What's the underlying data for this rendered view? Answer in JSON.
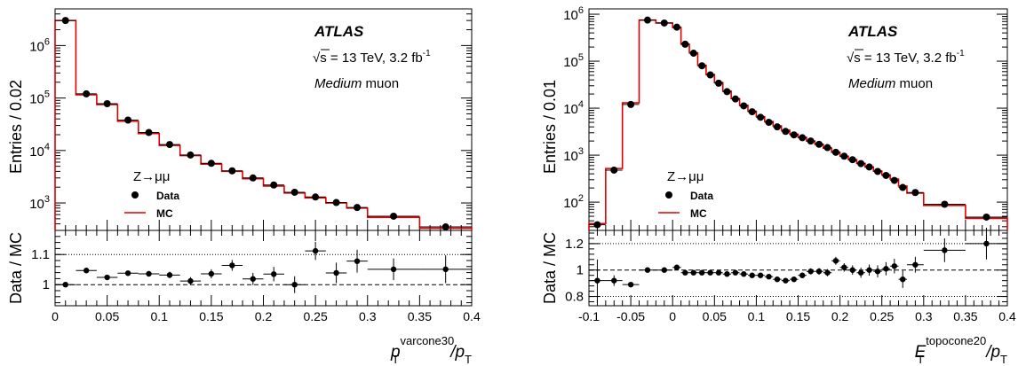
{
  "chart_data": [
    {
      "type": "histogram",
      "ylabel": "Entries / 0.02",
      "xlabel_main": "p",
      "xlabel_sup": "varcone30",
      "xlabel_sub": "T",
      "xlabel_div": "/p",
      "xlabel_div_sub": "T",
      "ratio_ylabel": "Data / MC",
      "atlas_label": "ATLAS",
      "energy_text": "√s = 13 TeV, 3.2 fb",
      "energy_sup": "-1",
      "muon_text": "Medium",
      "muon_suffix": " muon",
      "process_label": "Z→μμ",
      "legend_data": "Data",
      "legend_mc": "MC",
      "xlim": [
        0,
        0.4
      ],
      "ylim_log": [
        300,
        5000000
      ],
      "ratio_ylim": [
        0.93,
        1.18
      ],
      "x_ticks": [
        "0",
        "0.05",
        "0.1",
        "0.15",
        "0.2",
        "0.25",
        "0.3",
        "0.35",
        "0.4"
      ],
      "y_ticks": [
        {
          "base": "10",
          "exp": "3",
          "value": 1000
        },
        {
          "base": "10",
          "exp": "4",
          "value": 10000
        },
        {
          "base": "10",
          "exp": "5",
          "value": 100000
        },
        {
          "base": "10",
          "exp": "6",
          "value": 1000000
        }
      ],
      "ratio_ticks": [
        "1",
        "1.1"
      ],
      "ratio_dotted": [
        1.1
      ],
      "mc_bins": [
        0,
        0.02,
        0.04,
        0.06,
        0.08,
        0.1,
        0.12,
        0.14,
        0.16,
        0.18,
        0.2,
        0.22,
        0.24,
        0.26,
        0.28,
        0.3,
        0.35,
        0.4
      ],
      "mc_values": [
        3000000,
        115000,
        75000,
        36000,
        21000,
        12500,
        8000,
        5500,
        4000,
        2900,
        2100,
        1550,
        1250,
        1000,
        800,
        530,
        330
      ],
      "data_x": [
        0.01,
        0.03,
        0.05,
        0.07,
        0.09,
        0.11,
        0.13,
        0.15,
        0.17,
        0.19,
        0.21,
        0.23,
        0.25,
        0.27,
        0.29,
        0.325,
        0.375
      ],
      "data_y": [
        3000000,
        120000,
        78000,
        38000,
        22000,
        13000,
        8200,
        5700,
        4100,
        3000,
        2200,
        1600,
        1300,
        1020,
        820,
        560,
        350
      ],
      "ratio_x": [
        0.01,
        0.03,
        0.05,
        0.07,
        0.09,
        0.11,
        0.13,
        0.15,
        0.17,
        0.19,
        0.21,
        0.23,
        0.25,
        0.27,
        0.29,
        0.325,
        0.375
      ],
      "ratio_y": [
        1.0,
        1.047,
        1.024,
        1.038,
        1.036,
        1.032,
        1.012,
        1.036,
        1.064,
        1.019,
        1.035,
        1.0,
        1.112,
        1.039,
        1.078,
        1.051,
        1.051
      ],
      "ratio_err": [
        0.003,
        0.006,
        0.007,
        0.008,
        0.009,
        0.011,
        0.013,
        0.015,
        0.018,
        0.02,
        0.024,
        0.028,
        0.03,
        0.034,
        0.038,
        0.036,
        0.046
      ]
    },
    {
      "type": "histogram",
      "ylabel": "Entries / 0.01",
      "xlabel_main": "E",
      "xlabel_sup": "topocone20",
      "xlabel_sub": "T",
      "xlabel_div": "/p",
      "xlabel_div_sub": "T",
      "ratio_ylabel": "Data / MC",
      "atlas_label": "ATLAS",
      "energy_text": "√s = 13 TeV, 3.2 fb",
      "energy_sup": "-1",
      "muon_text": "Medium",
      "muon_suffix": " muon",
      "process_label": "Z→μμ",
      "legend_data": "Data",
      "legend_mc": "MC",
      "xlim": [
        -0.1,
        0.4
      ],
      "ylim_log": [
        25,
        1300000
      ],
      "ratio_ylim": [
        0.73,
        1.3
      ],
      "x_ticks": [
        "-0.1",
        "-0.05",
        "0",
        "0.05",
        "0.1",
        "0.15",
        "0.2",
        "0.25",
        "0.3",
        "0.35",
        "0.4"
      ],
      "y_ticks": [
        {
          "base": "10",
          "exp": "2",
          "value": 100
        },
        {
          "base": "10",
          "exp": "3",
          "value": 1000
        },
        {
          "base": "10",
          "exp": "4",
          "value": 10000
        },
        {
          "base": "10",
          "exp": "5",
          "value": 100000
        },
        {
          "base": "10",
          "exp": "6",
          "value": 1000000
        }
      ],
      "ratio_ticks": [
        "0.8",
        "1",
        "1.2"
      ],
      "ratio_dotted": [
        0.8,
        1.2
      ],
      "mc_bins": [
        -0.1,
        -0.08,
        -0.06,
        -0.04,
        -0.02,
        0,
        0.01,
        0.02,
        0.03,
        0.04,
        0.05,
        0.06,
        0.07,
        0.08,
        0.09,
        0.1,
        0.11,
        0.12,
        0.13,
        0.14,
        0.15,
        0.16,
        0.17,
        0.18,
        0.19,
        0.2,
        0.21,
        0.22,
        0.23,
        0.24,
        0.25,
        0.26,
        0.27,
        0.28,
        0.3,
        0.35,
        0.4
      ],
      "mc_values": [
        35,
        520,
        13000,
        750000,
        650000,
        520000,
        230000,
        150000,
        82000,
        52000,
        35000,
        23000,
        16000,
        11500,
        8600,
        6600,
        5200,
        4200,
        3400,
        2800,
        2400,
        2000,
        1700,
        1400,
        1150,
        950,
        800,
        670,
        560,
        460,
        380,
        310,
        220,
        155,
        85,
        45
      ],
      "data_x": [
        -0.09,
        -0.07,
        -0.05,
        -0.03,
        -0.01,
        0.005,
        0.015,
        0.025,
        0.035,
        0.045,
        0.055,
        0.065,
        0.075,
        0.085,
        0.095,
        0.105,
        0.115,
        0.125,
        0.135,
        0.145,
        0.155,
        0.165,
        0.175,
        0.185,
        0.195,
        0.205,
        0.215,
        0.225,
        0.235,
        0.245,
        0.255,
        0.265,
        0.275,
        0.29,
        0.325,
        0.375
      ],
      "data_y": [
        33,
        480,
        12000,
        750000,
        650000,
        530000,
        230000,
        148000,
        80000,
        51000,
        34000,
        22500,
        15700,
        11200,
        8400,
        6400,
        5000,
        4000,
        3200,
        2700,
        2350,
        2000,
        1700,
        1450,
        1150,
        950,
        800,
        660,
        560,
        450,
        370,
        290,
        205,
        160,
        90,
        48
      ],
      "ratio_x": [
        -0.09,
        -0.07,
        -0.05,
        -0.03,
        -0.01,
        0.005,
        0.015,
        0.025,
        0.035,
        0.045,
        0.055,
        0.065,
        0.075,
        0.085,
        0.095,
        0.105,
        0.115,
        0.125,
        0.135,
        0.145,
        0.155,
        0.165,
        0.175,
        0.185,
        0.195,
        0.205,
        0.215,
        0.225,
        0.235,
        0.245,
        0.255,
        0.265,
        0.275,
        0.29,
        0.325,
        0.375
      ],
      "ratio_y": [
        0.92,
        0.92,
        0.89,
        1.0,
        1.0,
        1.02,
        0.98,
        0.98,
        0.98,
        0.98,
        0.98,
        0.97,
        0.98,
        0.97,
        0.96,
        0.96,
        0.95,
        0.93,
        0.92,
        0.93,
        0.96,
        0.99,
        0.99,
        0.98,
        1.07,
        1.02,
        1.0,
        0.98,
        1.0,
        0.99,
        1.01,
        1.03,
        0.93,
        1.04,
        1.15,
        1.2
      ],
      "ratio_err": [
        0.16,
        0.04,
        0.01,
        0.003,
        0.003,
        0.003,
        0.004,
        0.004,
        0.004,
        0.005,
        0.006,
        0.007,
        0.008,
        0.009,
        0.011,
        0.012,
        0.014,
        0.015,
        0.017,
        0.019,
        0.021,
        0.023,
        0.025,
        0.027,
        0.03,
        0.032,
        0.035,
        0.038,
        0.042,
        0.046,
        0.05,
        0.055,
        0.065,
        0.06,
        0.09,
        0.12
      ]
    }
  ]
}
